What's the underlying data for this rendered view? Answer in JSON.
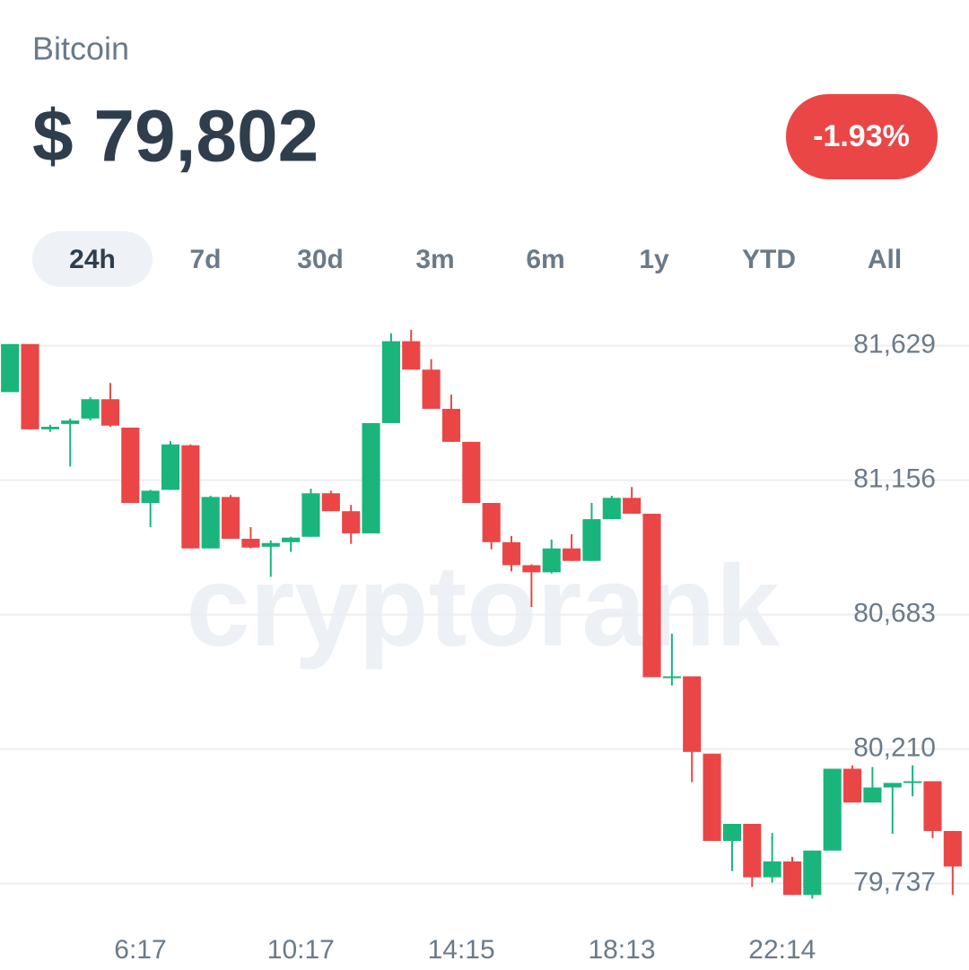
{
  "header": {
    "asset": "Bitcoin",
    "price": "$ 79,802",
    "change": "-1.93%"
  },
  "tabs": [
    "24h",
    "7d",
    "30d",
    "3m",
    "6m",
    "1y",
    "YTD",
    "All"
  ],
  "selected_tab": 0,
  "chart_data": {
    "type": "candlestick",
    "watermark": "cryptorank",
    "open": [
      81466,
      81635,
      81335,
      81354,
      81373,
      81441,
      81341,
      81076,
      81122,
      81279,
      80916,
      81097,
      80950,
      80922,
      80938,
      80957,
      81110,
      81047,
      80969,
      81357,
      81645,
      81545,
      81407,
      81291,
      81076,
      80938,
      80857,
      80832,
      80916,
      80872,
      81019,
      81094,
      81038,
      80460,
      80466,
      80194,
      79887,
      79947,
      79759,
      79815,
      79697,
      79853,
      80141,
      80022,
      80075,
      80091,
      80097,
      79922
    ],
    "high": [
      81635,
      81635,
      81351,
      81373,
      81448,
      81498,
      81341,
      81122,
      81294,
      81282,
      81101,
      81104,
      80991,
      80944,
      80957,
      81126,
      81119,
      81069,
      81357,
      81673,
      81685,
      81582,
      81457,
      81291,
      81076,
      80960,
      80860,
      80947,
      80966,
      81076,
      81101,
      81132,
      81038,
      80616,
      80466,
      80194,
      79947,
      79947,
      79915,
      79831,
      79853,
      80141,
      80153,
      80147,
      80091,
      80153,
      80097,
      79922
    ],
    "low": [
      81466,
      81335,
      81326,
      81204,
      81366,
      81344,
      81076,
      80991,
      81122,
      80916,
      80916,
      80950,
      80916,
      80816,
      80904,
      80957,
      81047,
      80932,
      80969,
      81357,
      81545,
      81407,
      81291,
      81076,
      80913,
      80835,
      80710,
      80828,
      80872,
      80872,
      81019,
      81038,
      80463,
      80434,
      80094,
      79887,
      79781,
      79725,
      79740,
      79697,
      79684,
      79853,
      80022,
      80022,
      79912,
      80044,
      79897,
      79697
    ],
    "close": [
      81635,
      81335,
      81344,
      81366,
      81441,
      81348,
      81076,
      81119,
      81282,
      80916,
      81097,
      80950,
      80919,
      80935,
      80954,
      81110,
      81047,
      80969,
      81357,
      81645,
      81545,
      81407,
      81291,
      81076,
      80938,
      80857,
      80832,
      80916,
      80872,
      81019,
      81094,
      81038,
      80463,
      80466,
      80200,
      79887,
      79947,
      79759,
      79815,
      79697,
      79853,
      80141,
      80022,
      80075,
      80091,
      80097,
      79922,
      79797
    ],
    "up_color": "#19b57c",
    "down_color": "#ea4646",
    "ylim": [
      79660,
      81710
    ],
    "yticks": [
      {
        "value": 81629,
        "label": "81,629"
      },
      {
        "value": 81156,
        "label": "81,156"
      },
      {
        "value": 80683,
        "label": "80,683"
      },
      {
        "value": 80210,
        "label": "80,210"
      },
      {
        "value": 79737,
        "label": "79,737"
      }
    ],
    "xticks": [
      {
        "value": 6.5,
        "label": "6:17"
      },
      {
        "value": 14.5,
        "label": "10:17"
      },
      {
        "value": 22.5,
        "label": "14:15"
      },
      {
        "value": 30.5,
        "label": "18:13"
      },
      {
        "value": 38.5,
        "label": "22:14"
      }
    ],
    "grid": true
  }
}
